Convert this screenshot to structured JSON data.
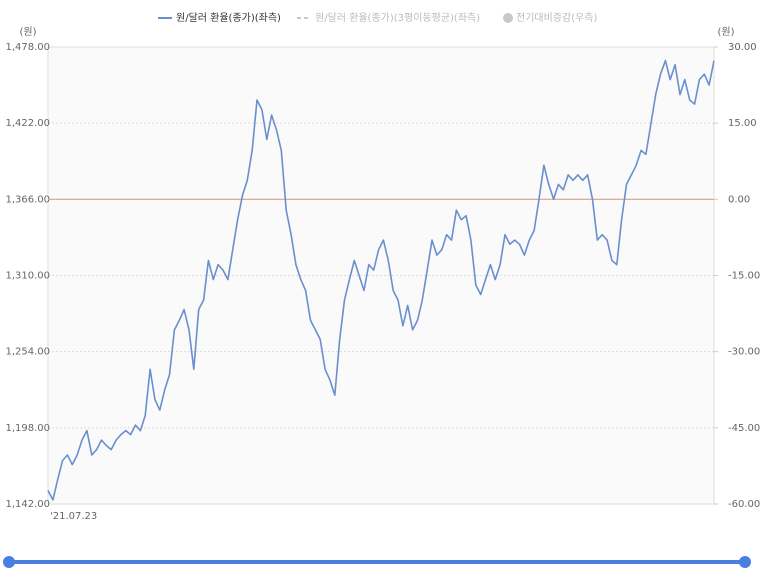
{
  "chart_data": {
    "type": "line",
    "legend": [
      {
        "name": "원/달러 환율(종가)(좌측)",
        "color": "#6a8fce",
        "active": true,
        "symbol": "line"
      },
      {
        "name": "원/달러 환율(종가)(3평이동평균)(좌측)",
        "color": "#c8c8c8",
        "active": false,
        "symbol": "dash"
      },
      {
        "name": "전기대비증감(우측)",
        "color": "#c8c8c8",
        "active": false,
        "symbol": "dot"
      }
    ],
    "y_unit": "(원)",
    "y2_unit": "(원)",
    "categories": [
      "'21.07.23",
      null,
      null,
      null,
      null,
      null,
      null,
      null,
      null,
      null,
      null,
      null,
      null,
      null,
      null,
      null,
      null,
      null,
      null,
      null,
      null,
      null,
      null,
      null,
      null,
      null,
      null,
      null,
      null,
      null,
      null,
      null,
      null,
      null,
      null,
      null,
      null,
      null,
      null,
      null,
      null,
      null,
      null,
      null,
      null,
      null,
      null,
      null,
      null,
      null,
      null,
      null,
      null,
      null,
      null,
      null,
      null,
      null,
      null,
      null,
      null,
      null,
      null,
      null,
      null,
      null,
      null,
      null,
      null,
      null,
      null,
      null,
      null,
      null,
      null,
      null,
      null,
      null,
      null,
      null,
      null,
      null,
      null,
      null,
      null,
      null,
      null,
      null,
      null,
      null,
      null,
      null,
      null,
      null,
      null,
      null,
      null,
      null,
      null,
      null,
      null,
      null,
      null,
      null,
      null,
      null,
      null,
      null,
      null,
      null,
      null,
      null,
      null,
      null,
      null,
      null,
      null,
      null,
      null,
      null,
      null,
      null,
      null,
      null,
      null,
      null,
      null,
      null,
      null,
      null,
      null,
      null,
      null,
      null,
      null,
      null,
      null,
      null
    ],
    "series": [
      {
        "name": "원/달러 환율(종가)(좌측)",
        "color": "#6a8fce",
        "values": [
          1152,
          1145,
          1160,
          1174,
          1178,
          1171,
          1178,
          1189,
          1196,
          1178,
          1182,
          1189,
          1185,
          1182,
          1189,
          1193,
          1196,
          1193,
          1200,
          1196,
          1207,
          1241,
          1219,
          1211,
          1226,
          1237,
          1270,
          1277,
          1285,
          1270,
          1241,
          1285,
          1292,
          1321,
          1307,
          1318,
          1314,
          1307,
          1329,
          1351,
          1369,
          1380,
          1402,
          1439,
          1432,
          1410,
          1428,
          1417,
          1402,
          1358,
          1340,
          1318,
          1307,
          1299,
          1277,
          1270,
          1263,
          1241,
          1233,
          1222,
          1263,
          1292,
          1307,
          1321,
          1310,
          1299,
          1318,
          1314,
          1329,
          1336,
          1321,
          1299,
          1292,
          1273,
          1288,
          1270,
          1277,
          1292,
          1314,
          1336,
          1325,
          1329,
          1340,
          1336,
          1358,
          1351,
          1354,
          1336,
          1303,
          1296,
          1307,
          1318,
          1307,
          1318,
          1340,
          1333,
          1336,
          1333,
          1325,
          1336,
          1343,
          1366,
          1391,
          1377,
          1366,
          1377,
          1373,
          1384,
          1380,
          1384,
          1380,
          1384,
          1366,
          1336,
          1340,
          1336,
          1321,
          1318,
          1351,
          1377,
          1384,
          1391,
          1402,
          1399,
          1421,
          1443,
          1458,
          1468,
          1454,
          1465,
          1443,
          1454,
          1439,
          1436,
          1454,
          1458,
          1450,
          1468
        ]
      }
    ],
    "ylim": [
      1142,
      1478
    ],
    "yticks": [
      {
        "value": 1142,
        "label": "1,142.00"
      },
      {
        "value": 1198,
        "label": "1,198.00"
      },
      {
        "value": 1254,
        "label": "1,254.00"
      },
      {
        "value": 1310,
        "label": "1,310.00"
      },
      {
        "value": 1366,
        "label": "1,366.00"
      },
      {
        "value": 1422,
        "label": "1,422.00"
      },
      {
        "value": 1478,
        "label": "1,478.00"
      }
    ],
    "y2lim": [
      -60,
      30
    ],
    "y2ticks": [
      {
        "value": -60,
        "label": "-60.00"
      },
      {
        "value": -45,
        "label": "-45.00"
      },
      {
        "value": -30,
        "label": "-30.00"
      },
      {
        "value": -15,
        "label": "-15.00"
      },
      {
        "value": 0,
        "label": "0.00"
      },
      {
        "value": 15,
        "label": "15.00"
      },
      {
        "value": 30,
        "label": "30.00"
      }
    ],
    "grid": true,
    "zero_line_color": "#d6a58f"
  }
}
